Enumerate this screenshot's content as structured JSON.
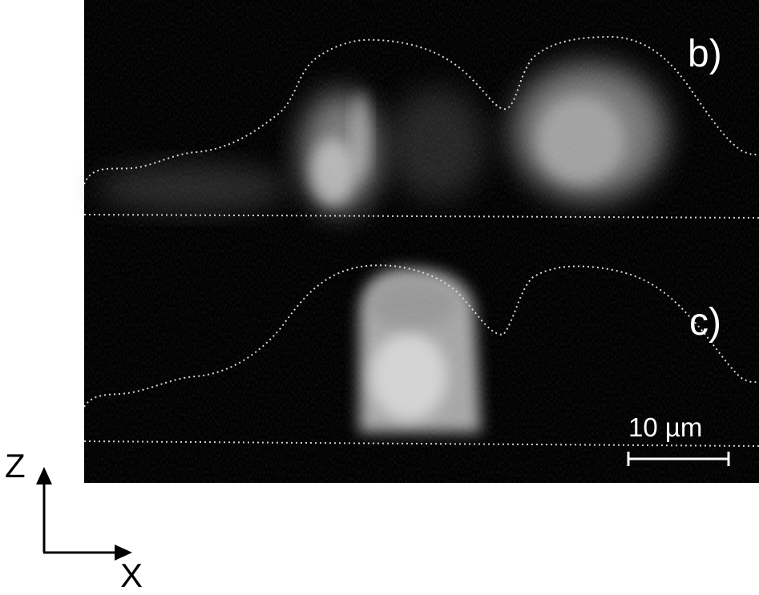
{
  "panels": [
    {
      "label": "b)"
    },
    {
      "label": "c)"
    }
  ],
  "scale_bar": {
    "label": "10 µm",
    "length_um": 10
  },
  "axes": {
    "vertical": "Z",
    "horizontal": "X"
  },
  "colors": {
    "background": "#000000",
    "signal": "#e6e6e6",
    "outline": "#d8d8d8",
    "page": "#ffffff"
  }
}
